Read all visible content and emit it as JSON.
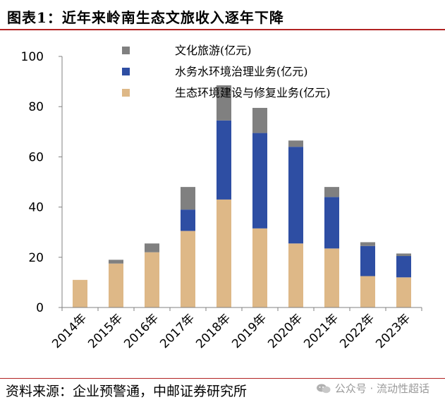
{
  "title": "图表1：近年来岭南生态文旅收入逐年下降",
  "source": "资料来源：企业预警通，中邮证券研究所",
  "watermark": {
    "text": "公众号 · 流动性超话",
    "icon": "wechat-icon"
  },
  "colors": {
    "title_rule": "#b22222",
    "axis": "#808080"
  },
  "chart_data": {
    "type": "bar",
    "stacked": true,
    "categories": [
      "2014年",
      "2015年",
      "2016年",
      "2017年",
      "2018年",
      "2019年",
      "2020年",
      "2021年",
      "2022年",
      "2023年"
    ],
    "series": [
      {
        "name": "生态环境建设与修复业务(亿元)",
        "color": "#deb887",
        "values": [
          11,
          17.5,
          22,
          30.5,
          43,
          31.5,
          25.5,
          23.5,
          12.5,
          12
        ]
      },
      {
        "name": "水务水环境治理业务(亿元)",
        "color": "#2e4ea3",
        "values": [
          0,
          0,
          0,
          8.5,
          31.5,
          38,
          38.5,
          20.5,
          12,
          8.5
        ]
      },
      {
        "name": "文化旅游(亿元)",
        "color": "#808080",
        "values": [
          0,
          1.5,
          3.5,
          9,
          14,
          10,
          2.5,
          4,
          1.5,
          1
        ]
      }
    ],
    "legend_order": [
      "文化旅游(亿元)",
      "水务水环境治理业务(亿元)",
      "生态环境建设与修复业务(亿元)"
    ],
    "y_ticks": [
      0,
      20,
      40,
      60,
      80,
      100
    ],
    "ylim": [
      0,
      100
    ],
    "grid": false,
    "legend_position": "top-center"
  }
}
